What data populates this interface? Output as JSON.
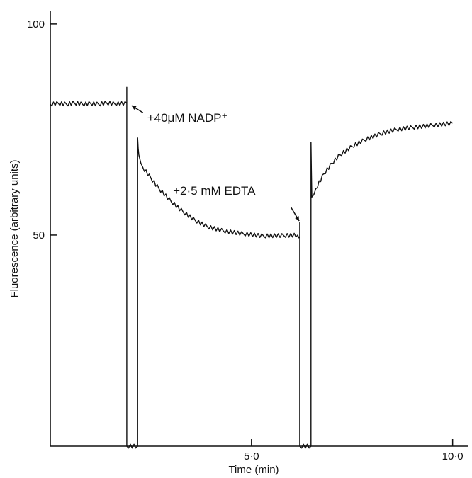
{
  "chart_data": {
    "type": "line",
    "title": "",
    "xlabel": "Time (min)",
    "ylabel": "Fluorescence (arbitrary units)",
    "xlim": [
      0,
      10.2
    ],
    "ylim": [
      0,
      103
    ],
    "x_ticks": [
      {
        "value": 5.0,
        "label": "5·0"
      },
      {
        "value": 10.0,
        "label": "10·0"
      }
    ],
    "y_ticks": [
      {
        "value": 50,
        "label": "50"
      },
      {
        "value": 100,
        "label": "100"
      }
    ],
    "grid": false,
    "series": [
      {
        "points": [
          [
            0.0,
            81.0
          ],
          [
            0.2,
            81.2
          ],
          [
            0.4,
            81.0
          ],
          [
            0.6,
            81.3
          ],
          [
            0.8,
            81.0
          ],
          [
            1.0,
            81.2
          ],
          [
            1.2,
            81.0
          ],
          [
            1.4,
            81.3
          ],
          [
            1.6,
            81.1
          ],
          [
            1.9,
            81.2
          ],
          [
            1.9,
            85.0
          ],
          [
            1.9,
            0.0
          ],
          [
            2.17,
            0.0
          ],
          [
            2.17,
            73.0
          ],
          [
            2.2,
            69.0
          ],
          [
            2.3,
            66.0
          ],
          [
            2.5,
            63.5
          ],
          [
            2.7,
            61.0
          ],
          [
            3.0,
            58.0
          ],
          [
            3.3,
            55.5
          ],
          [
            3.6,
            53.5
          ],
          [
            3.9,
            52.0
          ],
          [
            4.3,
            51.0
          ],
          [
            4.8,
            50.3
          ],
          [
            5.3,
            49.8
          ],
          [
            5.8,
            49.9
          ],
          [
            6.15,
            50.0
          ],
          [
            6.2,
            49.6
          ],
          [
            6.2,
            53.0
          ],
          [
            6.2,
            0.0
          ],
          [
            6.48,
            0.0
          ],
          [
            6.48,
            72.0
          ],
          [
            6.5,
            59.0
          ],
          [
            6.6,
            61.0
          ],
          [
            6.8,
            64.5
          ],
          [
            7.0,
            67.0
          ],
          [
            7.2,
            69.0
          ],
          [
            7.5,
            71.0
          ],
          [
            7.8,
            72.5
          ],
          [
            8.2,
            74.0
          ],
          [
            8.6,
            75.0
          ],
          [
            9.0,
            75.5
          ],
          [
            9.5,
            76.0
          ],
          [
            10.0,
            76.5
          ]
        ]
      }
    ],
    "annotations": [
      {
        "text": "+40μM NADP⁺",
        "x": 1.95,
        "y": 81.0
      },
      {
        "text": "+2·5 mM EDTA",
        "x": 6.15,
        "y": 52.0
      }
    ]
  }
}
